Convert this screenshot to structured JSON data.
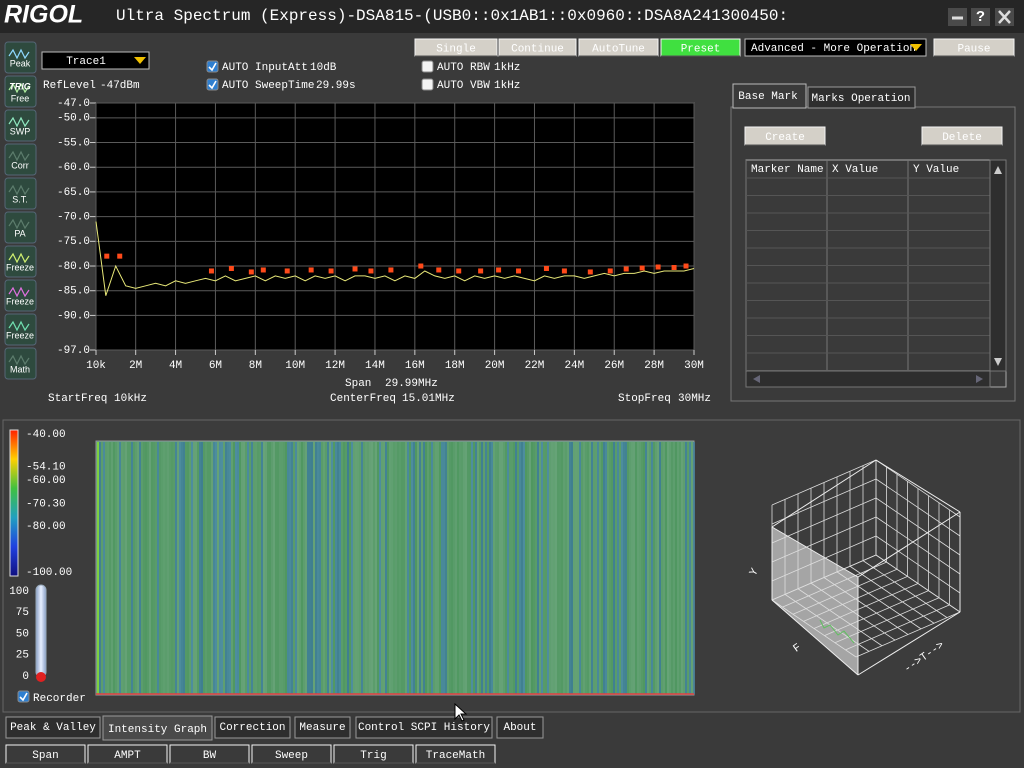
{
  "window": {
    "logo": "RIGOL",
    "title": "Ultra Spectrum (Express)-DSA815-(USB0::0x1AB1::0x0960::DSA8A241300450:",
    "help": "?"
  },
  "sidebar": [
    [
      "Peak"
    ],
    [
      "TRIG",
      "Free"
    ],
    [
      "SWP"
    ],
    [
      "Corr"
    ],
    [
      "S.T."
    ],
    [
      "PA"
    ],
    [
      "Freeze"
    ],
    [
      "Freeze"
    ],
    [
      "Freeze"
    ],
    [
      "Math"
    ]
  ],
  "controls": {
    "ref_level": {
      "label": "RefLevel",
      "value": "-47dBm"
    },
    "checks": [
      {
        "label": "AUTO InputAtt",
        "value": "10dB",
        "checked": true
      },
      {
        "label": "AUTO SweepTime",
        "value": "29.99s",
        "checked": true
      },
      {
        "label": "AUTO RBW",
        "value": "1kHz",
        "checked": false
      },
      {
        "label": "AUTO VBW",
        "value": "1kHz",
        "checked": false
      }
    ],
    "buttons": [
      "Single",
      "Continue",
      "AutoTune",
      "Preset"
    ],
    "mode_select": "Advanced - More Operation",
    "pause": "Pause"
  },
  "chart_data": {
    "type": "line",
    "x": [
      10000,
      500000,
      1000000,
      1500000,
      2000000,
      2500000,
      3000000,
      3500000,
      4000000,
      4500000,
      5000000,
      5500000,
      6000000,
      6500000,
      7000000,
      7500000,
      8000000,
      8500000,
      9000000,
      9500000,
      10000000,
      10500000,
      11000000,
      11500000,
      12000000,
      12500000,
      13000000,
      13500000,
      14000000,
      14500000,
      15000000,
      15500000,
      16000000,
      16500000,
      17000000,
      17500000,
      18000000,
      18500000,
      19000000,
      19500000,
      20000000,
      20500000,
      21000000,
      21500000,
      22000000,
      22500000,
      23000000,
      23500000,
      24000000,
      24500000,
      25000000,
      25500000,
      26000000,
      26500000,
      27000000,
      27500000,
      28000000,
      28500000,
      29000000,
      29500000,
      30000000
    ],
    "series": [
      {
        "name": "Trace1",
        "color": "#e8e878",
        "values": [
          -71,
          -86,
          -80,
          -84,
          -84.5,
          -84,
          -83.5,
          -84,
          -83,
          -83.5,
          -83,
          -82.5,
          -83,
          -82,
          -83,
          -82.5,
          -82,
          -83,
          -82,
          -82.5,
          -82,
          -83,
          -82,
          -82.5,
          -82,
          -83,
          -82,
          -82,
          -82.5,
          -82,
          -83,
          -82,
          -82.5,
          -81,
          -82,
          -82.5,
          -82,
          -83,
          -82,
          -82.5,
          -82,
          -82.5,
          -82,
          -82.5,
          -83,
          -82,
          -82.5,
          -82,
          -82,
          -82.5,
          -82,
          -81.5,
          -82,
          -81.5,
          -81.5,
          -81,
          -81.5,
          -81,
          -81,
          -81,
          -80.5
        ]
      }
    ],
    "peaks": {
      "color": "#ff4a1a",
      "x": [
        550000,
        1200000,
        5800000,
        6800000,
        7800000,
        8400000,
        9600000,
        10800000,
        11800000,
        13000000,
        13800000,
        14800000,
        16300000,
        17200000,
        18200000,
        19300000,
        20200000,
        21200000,
        22600000,
        23500000,
        24800000,
        25800000,
        26600000,
        27400000,
        28200000,
        29000000,
        29600000
      ],
      "values": [
        -78,
        -78,
        -81,
        -80.5,
        -81.2,
        -80.8,
        -81,
        -80.8,
        -81,
        -80.6,
        -81,
        -80.8,
        -80,
        -80.8,
        -81,
        -81,
        -80.8,
        -81,
        -80.5,
        -81,
        -81.2,
        -81,
        -80.6,
        -80.4,
        -80.2,
        -80.3,
        -80
      ]
    },
    "xlim": [
      10000,
      30000000
    ],
    "xticks": [
      {
        "value": 10000,
        "label": "10k"
      },
      {
        "value": 2000000,
        "label": "2M"
      },
      {
        "value": 4000000,
        "label": "4M"
      },
      {
        "value": 6000000,
        "label": "6M"
      },
      {
        "value": 8000000,
        "label": "8M"
      },
      {
        "value": 10000000,
        "label": "10M"
      },
      {
        "value": 12000000,
        "label": "12M"
      },
      {
        "value": 14000000,
        "label": "14M"
      },
      {
        "value": 16000000,
        "label": "16M"
      },
      {
        "value": 18000000,
        "label": "18M"
      },
      {
        "value": 20000000,
        "label": "20M"
      },
      {
        "value": 22000000,
        "label": "22M"
      },
      {
        "value": 24000000,
        "label": "24M"
      },
      {
        "value": 26000000,
        "label": "26M"
      },
      {
        "value": 28000000,
        "label": "28M"
      },
      {
        "value": 30000000,
        "label": "30M"
      }
    ],
    "ylim": [
      -97,
      -47
    ],
    "yticks": [
      {
        "value": -47,
        "label": "-47.0"
      },
      {
        "value": -50,
        "label": "-50.0"
      },
      {
        "value": -55,
        "label": "-55.0"
      },
      {
        "value": -60,
        "label": "-60.0"
      },
      {
        "value": -65,
        "label": "-65.0"
      },
      {
        "value": -70,
        "label": "-70.0"
      },
      {
        "value": -75,
        "label": "-75.0"
      },
      {
        "value": -80,
        "label": "-80.0"
      },
      {
        "value": -85,
        "label": "-85.0"
      },
      {
        "value": -90,
        "label": "-90.0"
      },
      {
        "value": -97,
        "label": "-97.0"
      }
    ],
    "grid": true
  },
  "sweep_info": {
    "span": {
      "label": "Span",
      "value": "29.99MHz"
    },
    "start": {
      "label": "StartFreq",
      "value": "10kHz"
    },
    "center": {
      "label": "CenterFreq",
      "value": "15.01MHz"
    },
    "stop": {
      "label": "StopFreq",
      "value": "30MHz"
    }
  },
  "markers": {
    "tabs": [
      "Base Mark",
      "Marks Operation"
    ],
    "buttons": [
      "Create",
      "Delete"
    ],
    "columns": [
      "Marker Name",
      "X Value",
      "Y Value"
    ]
  },
  "intensity": {
    "scale": {
      "lim": [
        -40,
        -100
      ],
      "ticks": [
        {
          "value": -40,
          "label": "-40.00"
        },
        {
          "value": -54.1,
          "label": "-54.10"
        },
        {
          "value": -60,
          "label": "-60.00"
        },
        {
          "value": -70.3,
          "label": "-70.30"
        },
        {
          "value": -80,
          "label": "-80.00"
        },
        {
          "value": -100,
          "label": "-100.00"
        }
      ]
    },
    "slider": {
      "lim": [
        100,
        0
      ],
      "ticks": [
        100,
        75,
        50,
        25,
        0
      ]
    },
    "recorder": {
      "label": "Recorder",
      "checked": true
    },
    "axis_3d": [
      "Y",
      "F",
      "-->T-->"
    ]
  },
  "tabs": {
    "items": [
      "Peak & Valley",
      "Intensity Graph",
      "Correction",
      "Measure",
      "Control SCPI History",
      "About"
    ],
    "active": 1
  },
  "menu": [
    "Span",
    "AMPT",
    "BW",
    "Sweep",
    "Trig",
    "TraceMath"
  ]
}
